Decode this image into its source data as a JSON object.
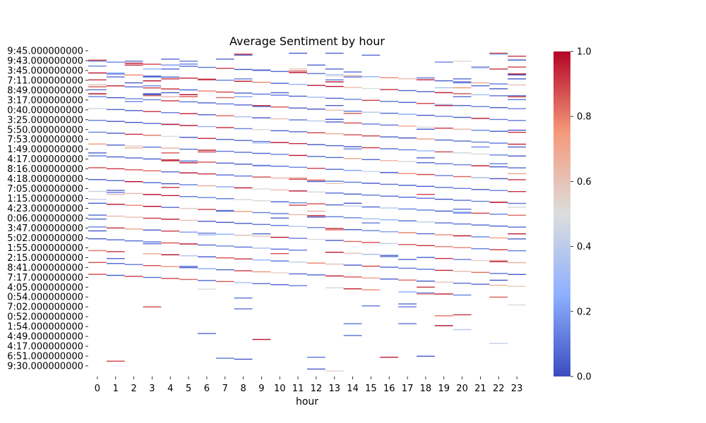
{
  "chart_data": {
    "type": "heatmap",
    "title": "Average Sentiment by hour",
    "xlabel": "hour",
    "ylabel": "",
    "x_categories": [
      "0",
      "1",
      "2",
      "3",
      "4",
      "5",
      "6",
      "7",
      "8",
      "9",
      "10",
      "11",
      "12",
      "13",
      "14",
      "15",
      "16",
      "17",
      "18",
      "19",
      "20",
      "21",
      "22",
      "23"
    ],
    "y_tick_labels": [
      "9:45.000000000",
      "9:43.000000000",
      "3:45.000000000",
      "7:11.000000000",
      "8:49.000000000",
      "3:17.000000000",
      "0:40.000000000",
      "3:25.000000000",
      "5:50.000000000",
      "7:53.000000000",
      "1:49.000000000",
      "4:17.000000000",
      "8:16.000000000",
      "4:18.000000000",
      "7:05.000000000",
      "1:15.000000000",
      "4:23.000000000",
      "0:06.000000000",
      "3:47.000000000",
      "5:02.000000000",
      "1:55.000000000",
      "2:15.000000000",
      "8:41.000000000",
      "7:17.000000000",
      "4:05.000000000",
      "0:54.000000000",
      "7:02.000000000",
      "0:52.000000000",
      "1:54.000000000",
      "4:49.000000000",
      "4:17.000000000",
      "6:51.000000000",
      "9:30.000000000"
    ],
    "colorbar": {
      "colormap": "coolwarm",
      "min": 0.0,
      "max": 1.0,
      "ticks": [
        "0.0",
        "0.2",
        "0.4",
        "0.6",
        "0.8",
        "1.0"
      ],
      "low_color": "#3b4cc0",
      "mid_color": "#dddddd",
      "high_color": "#b40426"
    },
    "n_rows_approx": 330,
    "bands": [
      {
        "row": 100,
        "slope": 0.035
      },
      {
        "row": 112,
        "slope": 0.035
      },
      {
        "row": 124,
        "slope": 0.035
      },
      {
        "row": 136,
        "slope": 0.035
      },
      {
        "row": 148,
        "slope": 0.035
      },
      {
        "row": 160,
        "slope": 0.035
      },
      {
        "row": 172,
        "slope": 0.035
      },
      {
        "row": 184,
        "slope": 0.035
      },
      {
        "row": 196,
        "slope": 0.035
      },
      {
        "row": 208,
        "slope": 0.035
      },
      {
        "row": 220,
        "slope": 0.035
      },
      {
        "row": 232,
        "slope": 0.035
      },
      {
        "row": 244,
        "slope": 0.035
      },
      {
        "row": 256,
        "slope": 0.035
      },
      {
        "row": 268,
        "slope": 0.035
      },
      {
        "row": 280,
        "slope": 0.035
      },
      {
        "row": 292,
        "slope": 0.035
      },
      {
        "row": 304,
        "slope": 0.035
      },
      {
        "row": 316,
        "slope": 0.035
      }
    ],
    "grid": false
  }
}
